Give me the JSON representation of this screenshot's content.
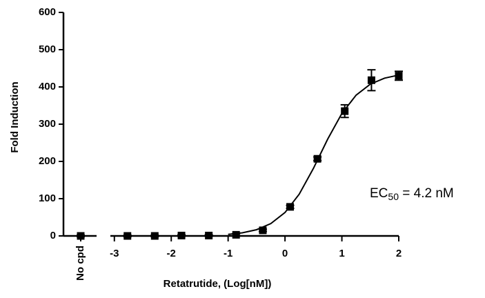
{
  "chart_data": {
    "type": "scatter",
    "x_label": "Retatrutide, (Log[nM])",
    "y_label": "Fold Induction",
    "control": {
      "label": "No cpd",
      "value": 0,
      "error": 2
    },
    "series": [
      {
        "name": "Retatrutide",
        "color": "#000000",
        "x": [
          -2.77,
          -2.29,
          -1.82,
          -1.34,
          -0.86,
          -0.39,
          0.09,
          0.57,
          1.05,
          1.52,
          2
        ],
        "values": [
          0,
          0,
          1,
          1,
          3,
          15,
          78,
          207,
          335,
          418,
          430
        ],
        "errors": [
          2,
          2,
          2,
          2,
          3,
          3,
          4,
          5,
          17,
          28,
          12
        ]
      },
      {
        "name": "Fit",
        "color": "#000000",
        "kind": "curve",
        "x": [
          -1,
          -0.75,
          -0.5,
          -0.25,
          0,
          0.25,
          0.5,
          0.75,
          1,
          1.25,
          1.5,
          1.75,
          2
        ],
        "values": [
          4.1,
          8.3,
          16.7,
          33.0,
          62.8,
          112.1,
          181.4,
          259.7,
          328.8,
          377.9,
          407.4,
          423.5,
          431.8
        ]
      }
    ],
    "annotation": {
      "main": "EC",
      "sub": "50",
      "rest": " = 4.2 nM"
    },
    "xlim": [
      -3.07,
      2
    ],
    "xticks": [
      -3,
      -2,
      -1,
      0,
      1,
      2
    ],
    "ylim": [
      0,
      600
    ],
    "yticks": [
      0,
      100,
      200,
      300,
      400,
      500,
      600
    ]
  }
}
